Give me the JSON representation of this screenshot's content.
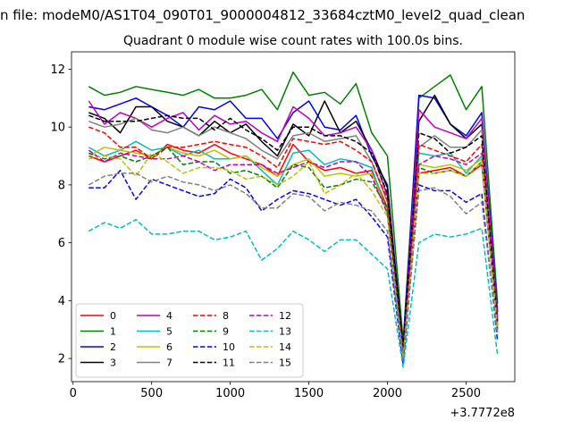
{
  "chart_data": {
    "type": "line",
    "suptitle": "n file: modeM0/AS1T04_090T01_9000004812_33684cztM0_level2_quad_clean",
    "title": "Quadrant 0 module wise count rates with 100.0s bins.",
    "xlabel": "",
    "ylabel": "",
    "x_offset_label": "+3.7772e8",
    "xlim": [
      -10,
      2810
    ],
    "ylim": [
      1.2,
      12.6
    ],
    "xticks": [
      0,
      500,
      1000,
      1500,
      2000,
      2500
    ],
    "yticks": [
      2,
      4,
      6,
      8,
      10,
      12
    ],
    "grid": false,
    "legend_position": "lower-left",
    "legend_columns": 4,
    "x": [
      100,
      200,
      300,
      400,
      500,
      600,
      700,
      800,
      900,
      1000,
      1100,
      1200,
      1300,
      1400,
      1500,
      1600,
      1700,
      1800,
      1900,
      2000,
      2100,
      2200,
      2300,
      2400,
      2500,
      2600,
      2700
    ],
    "series": [
      {
        "name": "0",
        "color": "#ff0000",
        "dash": "solid",
        "values": [
          9.0,
          8.8,
          9.0,
          9.2,
          8.9,
          9.4,
          9.2,
          9.1,
          9.4,
          9.1,
          8.9,
          8.7,
          8.3,
          9.4,
          8.8,
          8.5,
          8.6,
          8.4,
          8.5,
          7.2,
          2.2,
          8.4,
          8.5,
          8.6,
          8.3,
          8.7,
          3.0
        ]
      },
      {
        "name": "1",
        "color": "#008000",
        "dash": "solid",
        "values": [
          11.4,
          11.1,
          11.2,
          11.4,
          11.3,
          11.2,
          11.1,
          11.3,
          11.0,
          11.0,
          11.1,
          11.3,
          10.6,
          11.9,
          11.1,
          11.2,
          10.8,
          11.5,
          9.8,
          9.0,
          2.6,
          11.0,
          11.4,
          11.8,
          10.6,
          11.4,
          3.9
        ]
      },
      {
        "name": "2",
        "color": "#0000ff",
        "dash": "solid",
        "values": [
          10.7,
          10.6,
          10.8,
          11.0,
          10.7,
          10.4,
          10.0,
          10.7,
          10.6,
          10.9,
          10.3,
          10.3,
          9.6,
          10.5,
          10.9,
          10.0,
          9.9,
          10.4,
          9.0,
          8.0,
          2.4,
          11.1,
          11.0,
          10.1,
          9.7,
          10.5,
          3.6
        ]
      },
      {
        "name": "3",
        "color": "#000000",
        "dash": "solid",
        "values": [
          10.5,
          10.3,
          9.8,
          10.7,
          10.7,
          10.2,
          10.0,
          9.7,
          10.2,
          9.8,
          10.1,
          9.5,
          9.0,
          10.1,
          9.7,
          10.9,
          9.8,
          10.2,
          9.2,
          7.9,
          2.3,
          10.2,
          11.1,
          10.1,
          9.6,
          10.1,
          3.3
        ]
      },
      {
        "name": "4",
        "color": "#bf00bf",
        "dash": "solid",
        "values": [
          10.9,
          10.1,
          10.5,
          10.3,
          10.0,
          10.3,
          10.5,
          9.9,
          10.4,
          10.1,
          10.2,
          9.8,
          9.5,
          10.7,
          10.3,
          9.7,
          9.8,
          10.0,
          9.2,
          7.6,
          2.1,
          10.6,
          10.0,
          9.8,
          9.6,
          10.3,
          3.4
        ]
      },
      {
        "name": "5",
        "color": "#00bfbf",
        "dash": "solid",
        "values": [
          9.3,
          9.0,
          9.2,
          9.5,
          9.2,
          9.3,
          9.0,
          9.2,
          8.9,
          8.9,
          9.0,
          8.5,
          8.0,
          9.1,
          9.2,
          8.7,
          8.9,
          8.8,
          8.6,
          7.0,
          1.9,
          9.1,
          9.0,
          9.1,
          8.4,
          9.0,
          2.9
        ]
      },
      {
        "name": "6",
        "color": "#bfbf00",
        "dash": "solid",
        "values": [
          9.0,
          9.3,
          9.2,
          9.1,
          9.0,
          9.3,
          9.1,
          9.0,
          9.2,
          8.9,
          9.0,
          8.6,
          8.3,
          8.7,
          8.9,
          8.3,
          8.4,
          8.3,
          8.4,
          7.1,
          2.2,
          8.7,
          8.6,
          8.7,
          8.5,
          8.9,
          3.1
        ]
      },
      {
        "name": "7",
        "color": "#808080",
        "dash": "solid",
        "values": [
          10.2,
          10.0,
          10.1,
          10.3,
          9.9,
          9.8,
          10.0,
          9.7,
          10.0,
          9.8,
          9.6,
          9.2,
          8.9,
          9.7,
          9.8,
          9.5,
          9.6,
          9.7,
          8.8,
          7.4,
          2.1,
          9.3,
          9.7,
          9.3,
          9.3,
          9.9,
          3.2
        ]
      },
      {
        "name": "8",
        "color": "#ff0000",
        "dash": "dashed",
        "values": [
          10.0,
          9.8,
          9.3,
          9.3,
          8.9,
          9.3,
          9.3,
          9.4,
          9.5,
          9.4,
          9.3,
          9.0,
          8.6,
          9.6,
          9.5,
          9.4,
          9.5,
          9.2,
          8.8,
          7.5,
          2.2,
          9.4,
          9.2,
          9.0,
          8.8,
          9.4,
          3.1
        ]
      },
      {
        "name": "9",
        "color": "#008000",
        "dash": "dashed",
        "values": [
          9.1,
          8.9,
          9.0,
          8.8,
          9.0,
          9.3,
          8.7,
          8.8,
          8.8,
          8.4,
          8.5,
          8.3,
          7.9,
          8.7,
          8.6,
          7.9,
          8.0,
          8.2,
          8.1,
          7.2,
          2.1,
          8.6,
          8.4,
          8.5,
          8.3,
          8.8,
          3.0
        ]
      },
      {
        "name": "10",
        "color": "#0000ff",
        "dash": "dashed",
        "values": [
          7.9,
          7.9,
          8.5,
          7.5,
          8.2,
          8.0,
          7.8,
          7.6,
          7.7,
          8.2,
          7.9,
          7.1,
          7.5,
          7.8,
          7.7,
          7.5,
          7.3,
          7.5,
          6.9,
          6.2,
          1.8,
          8.0,
          7.8,
          7.8,
          7.4,
          7.7,
          2.6
        ]
      },
      {
        "name": "11",
        "color": "#000000",
        "dash": "dashed",
        "values": [
          10.4,
          10.2,
          10.2,
          10.2,
          10.3,
          10.4,
          10.3,
          10.3,
          9.9,
          10.3,
          9.9,
          9.6,
          9.2,
          10.0,
          10.0,
          9.7,
          9.7,
          9.5,
          9.1,
          7.7,
          2.3,
          9.8,
          9.6,
          9.1,
          9.3,
          9.7,
          3.2
        ]
      },
      {
        "name": "12",
        "color": "#bf00bf",
        "dash": "dashed",
        "values": [
          9.2,
          8.8,
          9.1,
          9.0,
          8.9,
          8.9,
          9.0,
          8.8,
          8.5,
          8.7,
          8.7,
          8.7,
          8.4,
          8.6,
          8.8,
          8.6,
          8.8,
          8.8,
          8.3,
          7.0,
          2.0,
          8.7,
          9.0,
          8.9,
          8.7,
          9.1,
          3.1
        ]
      },
      {
        "name": "13",
        "color": "#00bfbf",
        "dash": "dashed",
        "values": [
          6.4,
          6.7,
          6.5,
          6.8,
          6.3,
          6.3,
          6.4,
          6.4,
          6.1,
          6.2,
          6.4,
          5.4,
          5.8,
          6.4,
          6.1,
          5.7,
          6.1,
          6.1,
          5.6,
          5.1,
          1.7,
          6.0,
          6.3,
          6.2,
          6.3,
          6.5,
          2.1
        ]
      },
      {
        "name": "14",
        "color": "#bfbf00",
        "dash": "dashed",
        "values": [
          8.9,
          9.0,
          8.9,
          8.3,
          9.1,
          8.8,
          8.4,
          8.6,
          8.6,
          8.5,
          8.2,
          8.3,
          8.0,
          8.3,
          8.8,
          7.7,
          8.0,
          8.4,
          7.8,
          6.9,
          2.0,
          8.4,
          8.4,
          8.5,
          8.3,
          8.8,
          3.0
        ]
      },
      {
        "name": "15",
        "color": "#808080",
        "dash": "dashed",
        "values": [
          8.0,
          8.3,
          8.4,
          8.4,
          8.1,
          8.3,
          8.1,
          8.0,
          7.8,
          8.0,
          7.7,
          7.2,
          7.2,
          7.7,
          7.6,
          7.1,
          7.4,
          7.3,
          7.1,
          6.4,
          2.0,
          7.8,
          7.9,
          7.6,
          7.0,
          7.4,
          2.8
        ]
      }
    ]
  }
}
